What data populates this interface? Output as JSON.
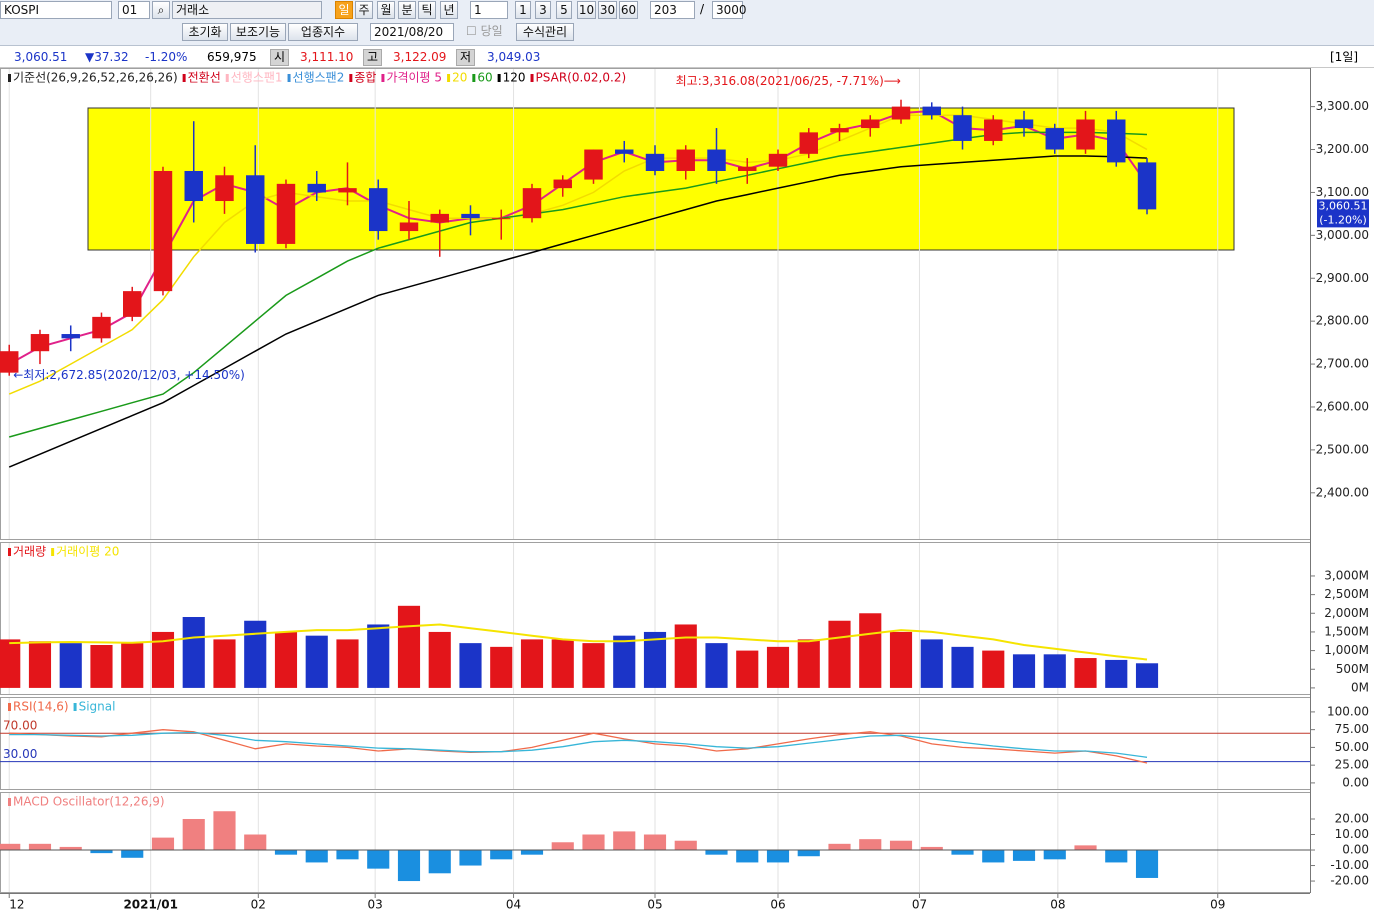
{
  "toolbar": {
    "symbol": "KOSPI",
    "code": "01",
    "market": "거래소",
    "periods": [
      "일",
      "주",
      "월",
      "분",
      "틱",
      "년"
    ],
    "count_select": "1",
    "intervals": [
      "1",
      "3",
      "5",
      "10",
      "30",
      "60"
    ],
    "bars": "203",
    "separator": "/",
    "max_bars": "3000",
    "buttons": [
      "초기화",
      "보조기능",
      "업종지수"
    ],
    "date": "2021/08/20",
    "today_label": "당일",
    "formula_button": "수식관리"
  },
  "quote": {
    "price": "3,060.51",
    "change": "▼37.32",
    "change_pct": "-1.20%",
    "volume": "659,975",
    "open_label": "시",
    "open": "3,111.10",
    "high_label": "고",
    "high": "3,122.09",
    "low_label": "저",
    "low": "3,049.03",
    "period": "[1일]"
  },
  "x_axis": {
    "x": [
      0,
      1,
      2,
      3,
      4,
      5,
      6,
      7,
      8,
      9,
      10,
      11,
      12,
      13,
      14,
      15,
      16,
      17,
      18,
      19,
      20,
      21,
      22,
      23,
      24,
      25,
      26,
      27,
      28,
      29,
      30,
      31,
      32,
      33,
      34,
      35,
      36,
      37
    ],
    "xlim": [
      -0.3,
      42.3
    ],
    "xticks": [
      {
        "value": 0,
        "label": "12"
      },
      {
        "value": 4.6,
        "label": "2021/01"
      },
      {
        "value": 8.1,
        "label": "02"
      },
      {
        "value": 11.9,
        "label": "03"
      },
      {
        "value": 16.4,
        "label": "04"
      },
      {
        "value": 21,
        "label": "05"
      },
      {
        "value": 25,
        "label": "06"
      },
      {
        "value": 29.6,
        "label": "07"
      },
      {
        "value": 34.1,
        "label": "08"
      },
      {
        "value": 39.3,
        "label": "09"
      }
    ]
  },
  "chart_data": [
    {
      "type": "candlestick",
      "up_color": "#e3151a",
      "down_color": "#1b34c8",
      "ylim": [
        2290,
        3390
      ],
      "yticks": [
        {
          "value": 3300,
          "label": "3,300.00"
        },
        {
          "value": 3200,
          "label": "3,200.00"
        },
        {
          "value": 3100,
          "label": "3,100.00"
        },
        {
          "value": 3000,
          "label": "3,000.00"
        },
        {
          "value": 2900,
          "label": "2,900.00"
        },
        {
          "value": 2800,
          "label": "2,800.00"
        },
        {
          "value": 2700,
          "label": "2,700.00"
        },
        {
          "value": 2600,
          "label": "2,600.00"
        },
        {
          "value": 2500,
          "label": "2,500.00"
        },
        {
          "value": 2400,
          "label": "2,400.00"
        }
      ],
      "legend_before": [
        {
          "text": "기준선(26,9,26,52,26,26,26)",
          "color": "#222222"
        },
        {
          "text": "전환선",
          "color": "#d0021b"
        },
        {
          "text": "선행스팬1",
          "color": "#ffb6c1"
        },
        {
          "text": "선행스팬2",
          "color": "#3a8fd8"
        },
        {
          "text": "종합",
          "color": "#d0021b"
        }
      ],
      "legend_after": [
        {
          "text": "PSAR(0.02,0.2)",
          "color": "#d0021b"
        }
      ],
      "candles": [
        [
          2680,
          2745,
          2672.85,
          2730
        ],
        [
          2730,
          2780,
          2700,
          2770
        ],
        [
          2770,
          2790,
          2730,
          2760
        ],
        [
          2760,
          2820,
          2750,
          2810
        ],
        [
          2810,
          2880,
          2800,
          2870
        ],
        [
          2870,
          3160,
          2860,
          3150
        ],
        [
          3150,
          3266,
          3030,
          3080
        ],
        [
          3080,
          3160,
          3050,
          3140
        ],
        [
          3140,
          3210,
          2960,
          2980
        ],
        [
          2980,
          3130,
          2970,
          3120
        ],
        [
          3120,
          3150,
          3080,
          3100
        ],
        [
          3100,
          3170,
          3070,
          3110
        ],
        [
          3110,
          3130,
          2990,
          3010
        ],
        [
          3010,
          3080,
          2990,
          3030
        ],
        [
          3030,
          3060,
          2950,
          3050
        ],
        [
          3050,
          3070,
          3000,
          3040
        ],
        [
          3040,
          3060,
          2990,
          3040
        ],
        [
          3040,
          3120,
          3030,
          3110
        ],
        [
          3110,
          3140,
          3090,
          3130
        ],
        [
          3130,
          3200,
          3120,
          3200
        ],
        [
          3200,
          3220,
          3170,
          3190
        ],
        [
          3190,
          3210,
          3140,
          3150
        ],
        [
          3150,
          3210,
          3130,
          3200
        ],
        [
          3200,
          3250,
          3120,
          3150
        ],
        [
          3150,
          3180,
          3120,
          3160
        ],
        [
          3160,
          3200,
          3150,
          3190
        ],
        [
          3190,
          3250,
          3180,
          3240
        ],
        [
          3240,
          3260,
          3220,
          3250
        ],
        [
          3250,
          3280,
          3230,
          3270
        ],
        [
          3270,
          3316.08,
          3260,
          3300
        ],
        [
          3300,
          3310,
          3270,
          3280
        ],
        [
          3280,
          3300,
          3200,
          3220
        ],
        [
          3220,
          3280,
          3210,
          3270
        ],
        [
          3270,
          3290,
          3230,
          3250
        ],
        [
          3250,
          3260,
          3190,
          3200
        ],
        [
          3200,
          3290,
          3190,
          3270
        ],
        [
          3270,
          3290,
          3160,
          3170
        ],
        [
          3170,
          3180,
          3049.03,
          3060.51
        ]
      ],
      "series": [
        {
          "name": "가격이평 5",
          "color": "#e0218a",
          "values": [
            2700,
            2740,
            2760,
            2780,
            2820,
            2950,
            3080,
            3120,
            3100,
            3060,
            3100,
            3110,
            3070,
            3040,
            3030,
            3040,
            3040,
            3070,
            3120,
            3170,
            3195,
            3170,
            3175,
            3175,
            3155,
            3175,
            3215,
            3245,
            3260,
            3285,
            3290,
            3250,
            3245,
            3255,
            3225,
            3235,
            3220,
            3120
          ]
        },
        {
          "name": "20",
          "color": "#f2dc00",
          "values": [
            2630,
            2660,
            2700,
            2740,
            2780,
            2850,
            2950,
            3030,
            3080,
            3100,
            3090,
            3080,
            3080,
            3060,
            3040,
            3040,
            3040,
            3050,
            3070,
            3100,
            3150,
            3180,
            3180,
            3180,
            3170,
            3175,
            3190,
            3220,
            3250,
            3280,
            3280,
            3280,
            3270,
            3260,
            3250,
            3250,
            3240,
            3200
          ]
        },
        {
          "name": "60",
          "color": "#1a9a1a",
          "values": [
            2530,
            2550,
            2570,
            2590,
            2610,
            2630,
            2680,
            2740,
            2800,
            2860,
            2900,
            2940,
            2970,
            2990,
            3010,
            3030,
            3040,
            3050,
            3060,
            3075,
            3090,
            3100,
            3110,
            3125,
            3140,
            3155,
            3170,
            3185,
            3195,
            3205,
            3215,
            3225,
            3235,
            3240,
            3240,
            3240,
            3238,
            3235
          ]
        },
        {
          "name": "120",
          "color": "#000000",
          "values": [
            2460,
            2490,
            2520,
            2550,
            2580,
            2610,
            2650,
            2690,
            2730,
            2770,
            2800,
            2830,
            2860,
            2880,
            2900,
            2920,
            2940,
            2960,
            2980,
            3000,
            3020,
            3040,
            3060,
            3080,
            3095,
            3110,
            3125,
            3140,
            3150,
            3160,
            3165,
            3170,
            3175,
            3180,
            3185,
            3185,
            3183,
            3180
          ]
        }
      ],
      "annotations": [
        {
          "text": "최고:3,316.08(2021/06/25, -7.71%)⟶",
          "x": 29,
          "y": 3316.08,
          "anchor": "end",
          "color": "#e3151a"
        },
        {
          "text": "←최저:2,672.85(2020/12/03, +14.50%)",
          "x": 0,
          "y": 2672.85,
          "anchor": "start",
          "color": "#1b34c8"
        }
      ],
      "last_label": {
        "value": 3060.51,
        "lines": [
          "3,060.51",
          "(-1.20%)"
        ]
      }
    },
    {
      "type": "bar",
      "ylim": [
        -190,
        3910
      ],
      "yticks": [
        {
          "value": 3000,
          "label": "3,000M"
        },
        {
          "value": 2500,
          "label": "2,500M"
        },
        {
          "value": 2000,
          "label": "2,000M"
        },
        {
          "value": 1500,
          "label": "1,500M"
        },
        {
          "value": 1000,
          "label": "1,000M"
        },
        {
          "value": 500,
          "label": "500M"
        },
        {
          "value": 0,
          "label": "0M"
        }
      ],
      "legend_before": [],
      "legend_after": [],
      "up_color": "#e3151a",
      "down_color": "#1b34c8",
      "series": [
        {
          "name": "거래량",
          "color": "#e3151a",
          "values": [
            1300,
            1250,
            1200,
            1150,
            1200,
            1500,
            1900,
            1300,
            1800,
            1500,
            1400,
            1300,
            1700,
            2200,
            1500,
            1200,
            1100,
            1300,
            1300,
            1200,
            1400,
            1500,
            1700,
            1200,
            1000,
            1100,
            1300,
            1800,
            2000,
            1500,
            1300,
            1100,
            1000,
            900,
            900,
            800,
            750,
            660
          ]
        },
        {
          "name": "거래이평 20",
          "color": "#f5e400",
          "values": [
            1200,
            1220,
            1230,
            1220,
            1210,
            1250,
            1350,
            1400,
            1450,
            1500,
            1550,
            1550,
            1600,
            1650,
            1700,
            1600,
            1500,
            1400,
            1300,
            1250,
            1250,
            1300,
            1350,
            1350,
            1300,
            1250,
            1250,
            1350,
            1450,
            1550,
            1500,
            1400,
            1300,
            1150,
            1050,
            950,
            850,
            760
          ]
        }
      ]
    },
    {
      "type": "line",
      "ylim": [
        -10,
        121
      ],
      "yticks": [
        {
          "value": 100,
          "label": "100.00"
        },
        {
          "value": 75,
          "label": "75.00"
        },
        {
          "value": 50,
          "label": "50.00"
        },
        {
          "value": 25,
          "label": "25.00"
        },
        {
          "value": 0,
          "label": "0.00"
        }
      ],
      "legend_before": [],
      "legend_after": [],
      "reference_lines": [
        {
          "value": 70,
          "label": "70.00",
          "color": "#c0392b"
        },
        {
          "value": 30,
          "label": "30.00",
          "color": "#2536b8"
        }
      ],
      "series": [
        {
          "name": "RSI(14,6)",
          "color": "#f06a4a",
          "values": [
            70,
            68,
            66,
            65,
            70,
            75,
            72,
            60,
            48,
            55,
            52,
            50,
            45,
            48,
            45,
            43,
            44,
            50,
            60,
            70,
            62,
            55,
            52,
            45,
            48,
            55,
            62,
            68,
            72,
            66,
            55,
            50,
            48,
            45,
            42,
            45,
            38,
            28
          ]
        },
        {
          "name": "Signal",
          "color": "#38b6d8",
          "values": [
            68,
            68,
            67,
            66,
            67,
            70,
            71,
            67,
            60,
            58,
            55,
            52,
            49,
            48,
            46,
            44,
            44,
            46,
            51,
            58,
            60,
            58,
            55,
            51,
            49,
            51,
            56,
            61,
            66,
            67,
            62,
            57,
            52,
            48,
            45,
            45,
            42,
            36
          ]
        }
      ]
    },
    {
      "type": "bar",
      "ylim": [
        -27.7,
        37.4
      ],
      "yticks": [
        {
          "value": 20,
          "label": "20.00"
        },
        {
          "value": 10,
          "label": "10.00"
        },
        {
          "value": 0,
          "label": "0.00"
        },
        {
          "value": -10,
          "label": "-10.00"
        },
        {
          "value": -20,
          "label": "-20.00"
        }
      ],
      "legend_before": [],
      "legend_after": [],
      "neg_color": "#1a8fe0",
      "series": [
        {
          "name": "MACD Oscillator(12,26,9)",
          "color": "#f08080",
          "values": [
            4,
            4,
            2,
            -2,
            -5,
            8,
            20,
            25,
            10,
            -3,
            -8,
            -6,
            -12,
            -20,
            -15,
            -10,
            -6,
            -3,
            5,
            10,
            12,
            10,
            6,
            -3,
            -8,
            -8,
            -4,
            4,
            7,
            6,
            2,
            -3,
            -8,
            -7,
            -6,
            3,
            -8,
            -18
          ]
        }
      ]
    }
  ]
}
